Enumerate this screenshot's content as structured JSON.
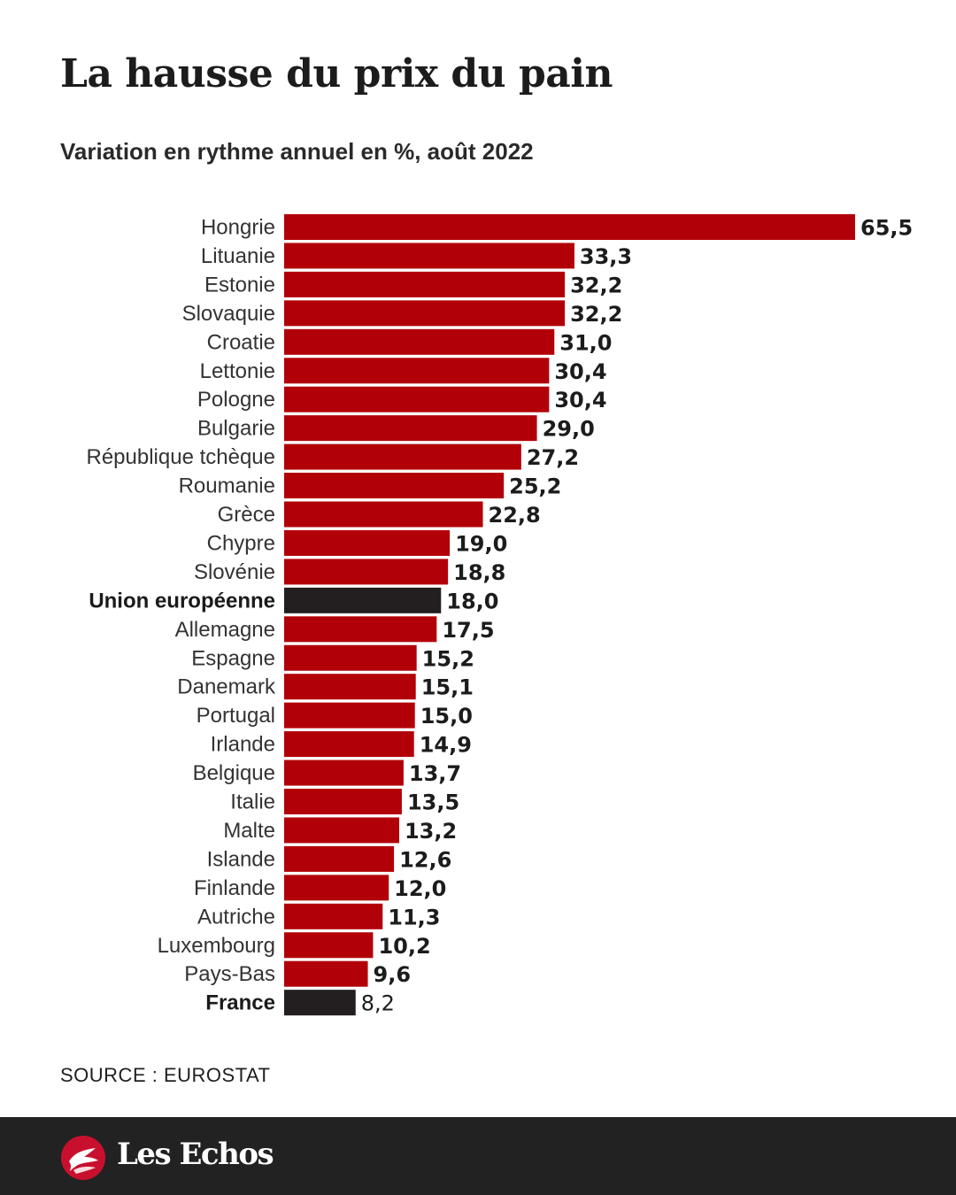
{
  "title": "La hausse du prix du pain",
  "subtitle": "Variation en rythme annuel en %, août 2022",
  "source": "SOURCE : EUROSTAT",
  "brand": {
    "name": "Les Echos"
  },
  "colors": {
    "bar": "#b20008",
    "highlight": "#231f20",
    "footer": "#222222"
  },
  "chart_data": {
    "type": "bar",
    "orientation": "horizontal",
    "title": "La hausse du prix du pain",
    "subtitle": "Variation en rythme annuel en %, août 2022",
    "categories": [
      "Hongrie",
      "Lituanie",
      "Estonie",
      "Slovaquie",
      "Croatie",
      "Lettonie",
      "Pologne",
      "Bulgarie",
      "République tchèque",
      "Roumanie",
      "Grèce",
      "Chypre",
      "Slovénie",
      "Union européenne",
      "Allemagne",
      "Espagne",
      "Danemark",
      "Portugal",
      "Irlande",
      "Belgique",
      "Italie",
      "Malte",
      "Islande",
      "Finlande",
      "Autriche",
      "Luxembourg",
      "Pays-Bas",
      "France"
    ],
    "values": [
      65.5,
      33.3,
      32.2,
      32.2,
      31.0,
      30.4,
      30.4,
      29.0,
      27.2,
      25.2,
      22.8,
      19.0,
      18.8,
      18.0,
      17.5,
      15.2,
      15.1,
      15.0,
      14.9,
      13.7,
      13.5,
      13.2,
      12.6,
      12.0,
      11.3,
      10.2,
      9.6,
      8.2
    ],
    "value_labels": [
      "65,5",
      "33,3",
      "32,2",
      "32,2",
      "31,0",
      "30,4",
      "30,4",
      "29,0",
      "27,2",
      "25,2",
      "22,8",
      "19,0",
      "18,8",
      "18,0",
      "17,5",
      "15,2",
      "15,1",
      "15,0",
      "14,9",
      "13,7",
      "13,5",
      "13,2",
      "12,6",
      "12,0",
      "11,3",
      "10,2",
      "9,6",
      "8,2"
    ],
    "highlighted": [
      "Union européenne",
      "France"
    ],
    "xlim": [
      0,
      65.5
    ],
    "grid": false,
    "legend": "none"
  }
}
